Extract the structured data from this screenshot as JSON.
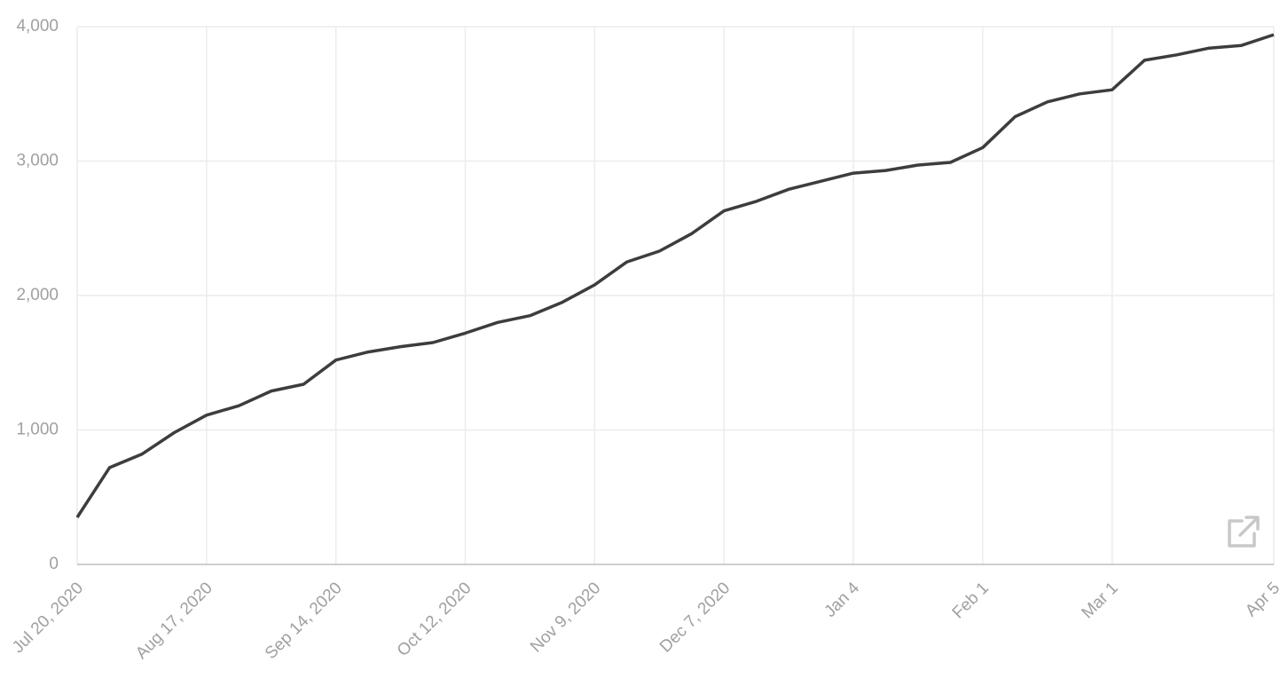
{
  "chart_data": {
    "type": "line",
    "categories": [
      "Jul 20, 2020",
      null,
      null,
      null,
      "Aug 17, 2020",
      null,
      null,
      null,
      "Sep 14, 2020",
      null,
      null,
      null,
      "Oct 12, 2020",
      null,
      null,
      null,
      "Nov 9, 2020",
      null,
      null,
      null,
      "Dec 7, 2020",
      null,
      null,
      null,
      "Jan 4",
      null,
      null,
      null,
      "Feb 1",
      null,
      null,
      null,
      "Mar 1",
      null,
      null,
      null,
      null,
      "Apr 5"
    ],
    "series": [
      {
        "color": "#3d3d3d",
        "values": [
          350,
          720,
          820,
          980,
          1110,
          1180,
          1290,
          1340,
          1520,
          1580,
          1620,
          1650,
          1720,
          1800,
          1850,
          1950,
          2080,
          2250,
          2330,
          2460,
          2630,
          2700,
          2790,
          2850,
          2910,
          2930,
          2970,
          2990,
          3100,
          3330,
          3440,
          3500,
          3530,
          3750,
          3790,
          3840,
          3860,
          3940
        ]
      }
    ],
    "ylim": [
      0,
      4000
    ],
    "yticks": [
      0,
      {
        "value": 1000,
        "label": "1,000"
      },
      {
        "value": 2000,
        "label": "2,000"
      },
      {
        "value": 3000,
        "label": "3,000"
      },
      {
        "value": 4000,
        "label": "4,000"
      }
    ],
    "grid": true
  }
}
